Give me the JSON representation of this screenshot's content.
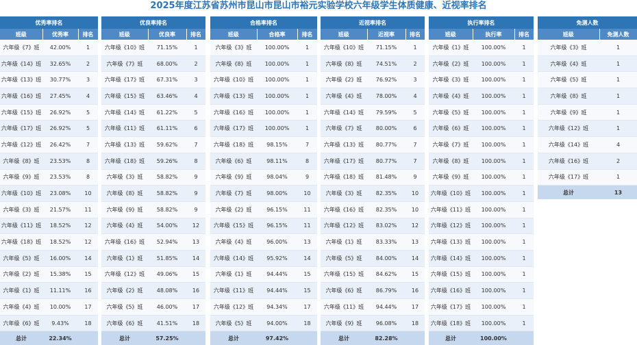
{
  "title": "2025年度江苏省苏州市昆山市昆山市裕元实验学校六年级学生体质健康、近视率排名",
  "tables": [
    {
      "header": "优秀率排名",
      "columns": [
        "班级",
        "优秀率",
        "排名"
      ],
      "rows": [
        [
          "六年级《7》班",
          "42.00%",
          "1"
        ],
        [
          "六年级《14》班",
          "32.65%",
          "2"
        ],
        [
          "六年级《13》班",
          "30.77%",
          "3"
        ],
        [
          "六年级《16》班",
          "27.45%",
          "4"
        ],
        [
          "六年级《15》班",
          "26.92%",
          "5"
        ],
        [
          "六年级《17》班",
          "26.92%",
          "5"
        ],
        [
          "六年级《12》班",
          "26.42%",
          "7"
        ],
        [
          "六年级《8》班",
          "23.53%",
          "8"
        ],
        [
          "六年级《9》班",
          "23.53%",
          "8"
        ],
        [
          "六年级《10》班",
          "23.08%",
          "10"
        ],
        [
          "六年级《3》班",
          "21.57%",
          "11"
        ],
        [
          "六年级《11》班",
          "18.52%",
          "12"
        ],
        [
          "六年级《18》班",
          "18.52%",
          "12"
        ],
        [
          "六年级《5》班",
          "16.00%",
          "14"
        ],
        [
          "六年级《2》班",
          "15.38%",
          "15"
        ],
        [
          "六年级《1》班",
          "11.11%",
          "16"
        ],
        [
          "六年级《4》班",
          "10.00%",
          "17"
        ],
        [
          "六年级《6》班",
          "9.43%",
          "18"
        ]
      ],
      "total": [
        "总计",
        "22.34%",
        ""
      ]
    },
    {
      "header": "优良率排名",
      "columns": [
        "班级",
        "优良率",
        "排名"
      ],
      "rows": [
        [
          "六年级《10》班",
          "71.15%",
          "1"
        ],
        [
          "六年级《7》班",
          "68.00%",
          "2"
        ],
        [
          "六年级《17》班",
          "67.31%",
          "3"
        ],
        [
          "六年级《15》班",
          "63.46%",
          "4"
        ],
        [
          "六年级《14》班",
          "61.22%",
          "5"
        ],
        [
          "六年级《11》班",
          "61.11%",
          "6"
        ],
        [
          "六年级《13》班",
          "59.62%",
          "7"
        ],
        [
          "六年级《18》班",
          "59.26%",
          "8"
        ],
        [
          "六年级《3》班",
          "58.82%",
          "9"
        ],
        [
          "六年级《8》班",
          "58.82%",
          "9"
        ],
        [
          "六年级《9》班",
          "58.82%",
          "9"
        ],
        [
          "六年级《4》班",
          "54.00%",
          "12"
        ],
        [
          "六年级《16》班",
          "52.94%",
          "13"
        ],
        [
          "六年级《1》班",
          "51.85%",
          "14"
        ],
        [
          "六年级《12》班",
          "49.06%",
          "15"
        ],
        [
          "六年级《2》班",
          "48.08%",
          "16"
        ],
        [
          "六年级《5》班",
          "46.00%",
          "17"
        ],
        [
          "六年级《6》班",
          "41.51%",
          "18"
        ]
      ],
      "total": [
        "总计",
        "57.25%",
        ""
      ]
    },
    {
      "header": "合格率排名",
      "columns": [
        "班级",
        "合格率",
        "排名"
      ],
      "rows": [
        [
          "六年级《3》班",
          "100.00%",
          "1"
        ],
        [
          "六年级《8》班",
          "100.00%",
          "1"
        ],
        [
          "六年级《10》班",
          "100.00%",
          "1"
        ],
        [
          "六年级《13》班",
          "100.00%",
          "1"
        ],
        [
          "六年级《16》班",
          "100.00%",
          "1"
        ],
        [
          "六年级《17》班",
          "100.00%",
          "1"
        ],
        [
          "六年级《18》班",
          "98.15%",
          "7"
        ],
        [
          "六年级《6》班",
          "98.11%",
          "8"
        ],
        [
          "六年级《9》班",
          "98.04%",
          "9"
        ],
        [
          "六年级《7》班",
          "98.00%",
          "10"
        ],
        [
          "六年级《2》班",
          "96.15%",
          "11"
        ],
        [
          "六年级《15》班",
          "96.15%",
          "11"
        ],
        [
          "六年级《4》班",
          "96.00%",
          "13"
        ],
        [
          "六年级《14》班",
          "95.92%",
          "14"
        ],
        [
          "六年级《1》班",
          "94.44%",
          "15"
        ],
        [
          "六年级《11》班",
          "94.44%",
          "15"
        ],
        [
          "六年级《12》班",
          "94.34%",
          "17"
        ],
        [
          "六年级《5》班",
          "94.00%",
          "18"
        ]
      ],
      "total": [
        "总计",
        "97.42%",
        ""
      ]
    },
    {
      "header": "近视率排名",
      "columns": [
        "班级",
        "近视率",
        "排名"
      ],
      "rows": [
        [
          "六年级《10》班",
          "71.15%",
          "1"
        ],
        [
          "六年级《8》班",
          "74.51%",
          "2"
        ],
        [
          "六年级《2》班",
          "76.92%",
          "3"
        ],
        [
          "六年级《4》班",
          "78.00%",
          "4"
        ],
        [
          "六年级《14》班",
          "79.59%",
          "5"
        ],
        [
          "六年级《7》班",
          "80.00%",
          "6"
        ],
        [
          "六年级《13》班",
          "80.77%",
          "7"
        ],
        [
          "六年级《17》班",
          "80.77%",
          "7"
        ],
        [
          "六年级《18》班",
          "81.48%",
          "9"
        ],
        [
          "六年级《3》班",
          "82.35%",
          "10"
        ],
        [
          "六年级《16》班",
          "82.35%",
          "10"
        ],
        [
          "六年级《12》班",
          "83.02%",
          "12"
        ],
        [
          "六年级《1》班",
          "83.33%",
          "13"
        ],
        [
          "六年级《5》班",
          "84.00%",
          "14"
        ],
        [
          "六年级《15》班",
          "84.62%",
          "15"
        ],
        [
          "六年级《6》班",
          "86.79%",
          "16"
        ],
        [
          "六年级《11》班",
          "94.44%",
          "17"
        ],
        [
          "六年级《9》班",
          "96.08%",
          "18"
        ]
      ],
      "total": [
        "总计",
        "82.28%",
        ""
      ]
    },
    {
      "header": "执行率排名",
      "columns": [
        "班级",
        "执行率",
        "排名"
      ],
      "rows": [
        [
          "六年级《1》班",
          "100.00%",
          "1"
        ],
        [
          "六年级《2》班",
          "100.00%",
          "1"
        ],
        [
          "六年级《3》班",
          "100.00%",
          "1"
        ],
        [
          "六年级《4》班",
          "100.00%",
          "1"
        ],
        [
          "六年级《5》班",
          "100.00%",
          "1"
        ],
        [
          "六年级《6》班",
          "100.00%",
          "1"
        ],
        [
          "六年级《7》班",
          "100.00%",
          "1"
        ],
        [
          "六年级《8》班",
          "100.00%",
          "1"
        ],
        [
          "六年级《9》班",
          "100.00%",
          "1"
        ],
        [
          "六年级《10》班",
          "100.00%",
          "1"
        ],
        [
          "六年级《11》班",
          "100.00%",
          "1"
        ],
        [
          "六年级《12》班",
          "100.00%",
          "1"
        ],
        [
          "六年级《13》班",
          "100.00%",
          "1"
        ],
        [
          "六年级《14》班",
          "100.00%",
          "1"
        ],
        [
          "六年级《15》班",
          "100.00%",
          "1"
        ],
        [
          "六年级《16》班",
          "100.00%",
          "1"
        ],
        [
          "六年级《17》班",
          "100.00%",
          "1"
        ],
        [
          "六年级《18》班",
          "100.00%",
          "1"
        ]
      ],
      "total": [
        "总计",
        "100.00%",
        ""
      ]
    },
    {
      "header": "免测人数",
      "columns": [
        "班级",
        "免测人数"
      ],
      "rows": [
        [
          "六年级《3》班",
          "1"
        ],
        [
          "六年级《4》班",
          "1"
        ],
        [
          "六年级《5》班",
          "1"
        ],
        [
          "六年级《8》班",
          "1"
        ],
        [
          "六年级《9》班",
          "1"
        ],
        [
          "六年级《12》班",
          "1"
        ],
        [
          "六年级《14》班",
          "4"
        ],
        [
          "六年级《16》班",
          "2"
        ],
        [
          "六年级《17》班",
          "1"
        ]
      ],
      "total": [
        "总计",
        "13"
      ]
    }
  ],
  "colors": {
    "title": "#2e75b6",
    "header_dark": "#2e75b6",
    "header_light": "#4f8ac6",
    "row_odd": "#f7f9fd",
    "row_even": "#eaf0f9",
    "total_row": "#c6d8ee"
  }
}
